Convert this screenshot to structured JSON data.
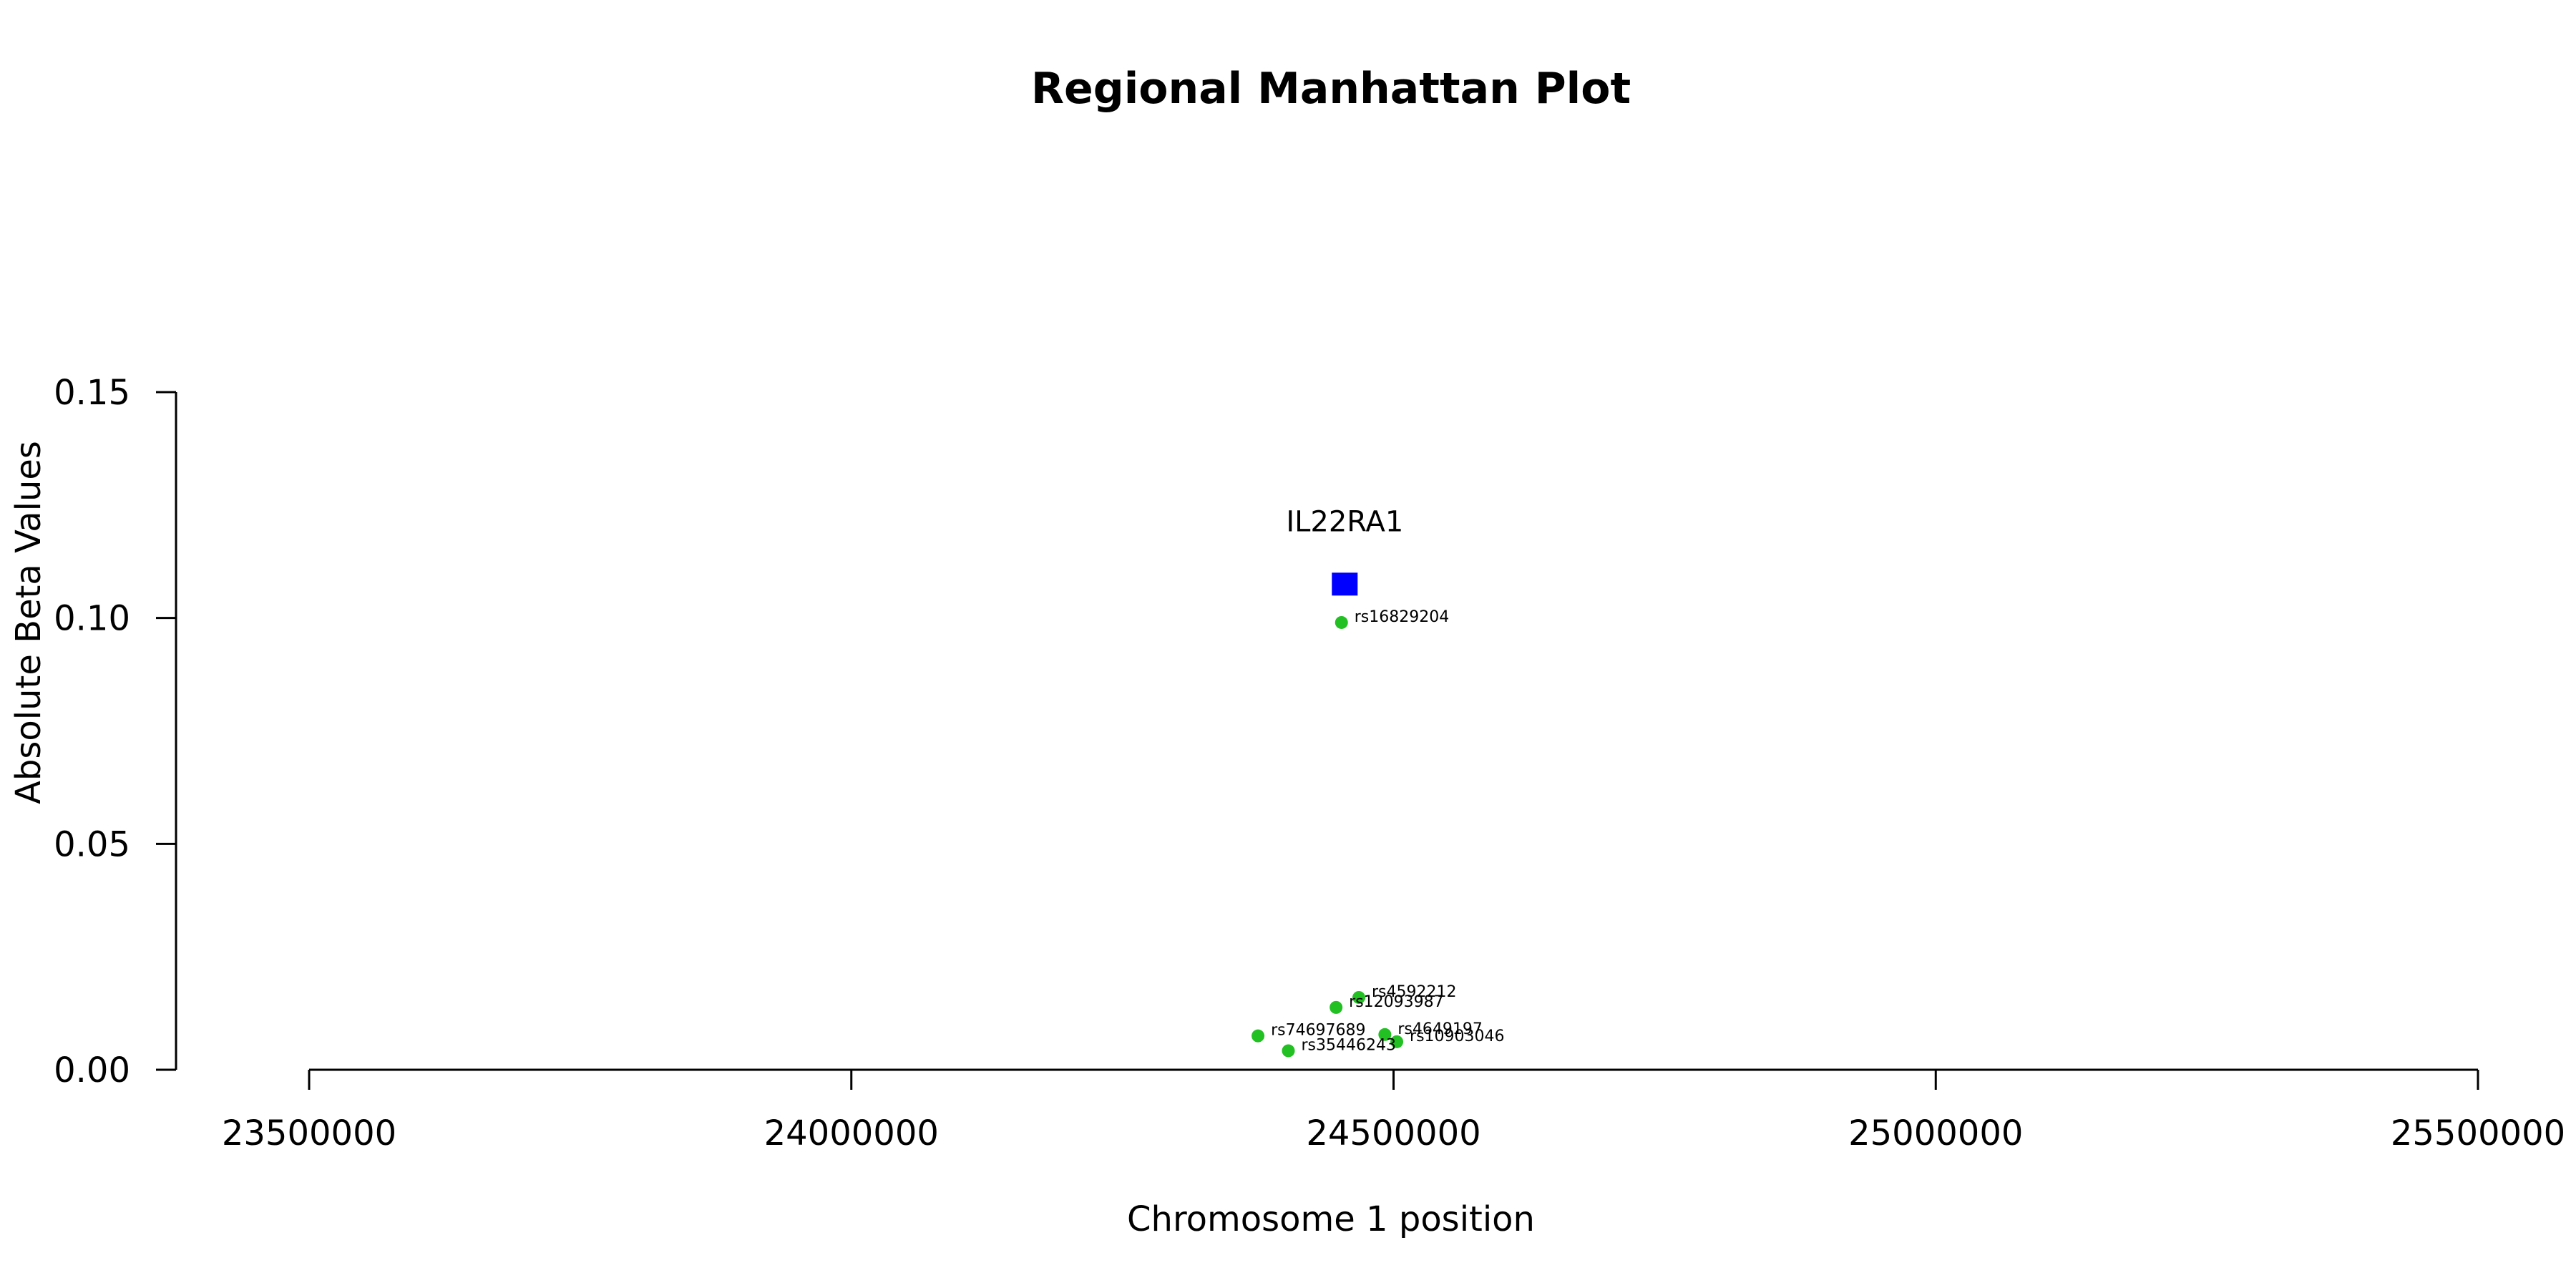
{
  "chart_data": {
    "type": "scatter",
    "title": "Regional Manhattan Plot",
    "xlabel": "Chromosome 1 position",
    "ylabel": "Absolute Beta Values",
    "xlim": [
      23500000,
      25500000
    ],
    "ylim": [
      0,
      0.15
    ],
    "xticks": [
      "23500000",
      "24000000",
      "24500000",
      "25000000",
      "25500000"
    ],
    "yticks": [
      "0.00",
      "0.05",
      "0.10",
      "0.15"
    ],
    "grid": false,
    "gene": {
      "label": "IL22RA1",
      "x": 24455000,
      "y": 0.1075,
      "color": "#0000ff",
      "marker": "square"
    },
    "snp_color": "#22c022",
    "snps": [
      {
        "label": "rs16829204",
        "x": 24452000,
        "y": 0.099
      },
      {
        "label": "rs4592212",
        "x": 24468000,
        "y": 0.016
      },
      {
        "label": "rs12093987",
        "x": 24447000,
        "y": 0.0138
      },
      {
        "label": "rs74697689",
        "x": 24375000,
        "y": 0.0075
      },
      {
        "label": "rs4649197",
        "x": 24492000,
        "y": 0.0078
      },
      {
        "label": "rs10903046",
        "x": 24503000,
        "y": 0.0062
      },
      {
        "label": "rs35446243",
        "x": 24403000,
        "y": 0.0042
      }
    ]
  }
}
